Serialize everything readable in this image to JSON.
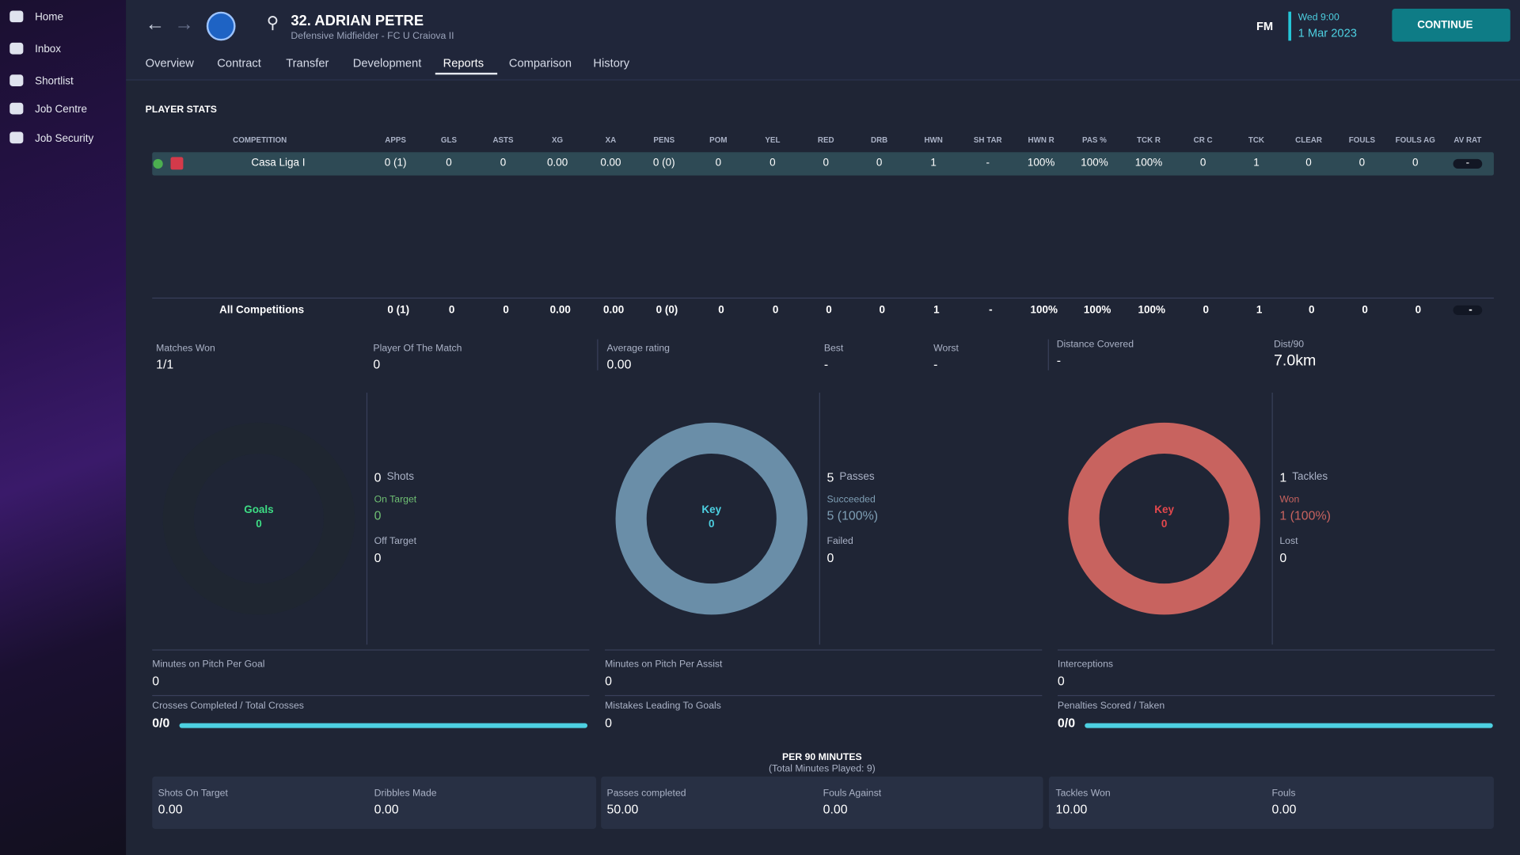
{
  "sidebar": [
    "Home",
    "Inbox",
    "Shortlist",
    "Job Centre",
    "Job Security"
  ],
  "header": {
    "title": "32. ADRIAN PETRE",
    "subtitle": "Defensive Midfielder - FC U Craiova II",
    "brand": "FM",
    "day": "Wed 9:00",
    "date": "1 Mar 2023",
    "continue": "CONTINUE"
  },
  "tabs": [
    "Overview",
    "Contract",
    "Transfer",
    "Development",
    "Reports",
    "Comparison",
    "History"
  ],
  "active_tab": 4,
  "section_title": "PLAYER STATS",
  "table": {
    "columns": [
      "COMPETITION",
      "APPS",
      "GLS",
      "ASTS",
      "XG",
      "XA",
      "PENS",
      "POM",
      "YEL",
      "RED",
      "DRB",
      "HWN",
      "SH TAR",
      "HWN R",
      "PAS %",
      "TCK R",
      "CR C",
      "TCK",
      "CLEAR",
      "FOULS",
      "FOULS AG",
      "AV RAT"
    ],
    "rows": [
      [
        "Casa Liga I",
        "0 (1)",
        "0",
        "0",
        "0.00",
        "0.00",
        "0 (0)",
        "0",
        "0",
        "0",
        "0",
        "1",
        "-",
        "100%",
        "100%",
        "100%",
        "0",
        "1",
        "0",
        "0",
        "0",
        "-"
      ]
    ],
    "totals": [
      "All Competitions",
      "0 (1)",
      "0",
      "0",
      "0.00",
      "0.00",
      "0 (0)",
      "0",
      "0",
      "0",
      "0",
      "1",
      "-",
      "100%",
      "100%",
      "100%",
      "0",
      "1",
      "0",
      "0",
      "0",
      "-"
    ]
  },
  "summary": [
    {
      "label": "Matches Won",
      "value": "1/1"
    },
    {
      "label": "Player Of The Match",
      "value": "0"
    },
    {
      "label": "Average rating",
      "value": "0.00"
    },
    {
      "label": "Best",
      "value": "-"
    },
    {
      "label": "Worst",
      "value": "-"
    },
    {
      "label": "Distance Covered",
      "value": "-"
    },
    {
      "label": "Dist/90",
      "value": "7.0km"
    }
  ],
  "donuts": [
    {
      "center_label": "Goals",
      "center_value": "0",
      "ring_color": "#1f2631",
      "center_color": "#3ddc84",
      "total": "0",
      "total_label": "Shots",
      "sub1_label": "On Target",
      "sub1_value": "0",
      "sub1_color": "#6fbf73",
      "sub2_label": "Off Target",
      "sub2_value": "0"
    },
    {
      "center_label": "Key",
      "center_value": "0",
      "ring_color": "#6a8ea8",
      "center_color": "#4dd0e1",
      "total": "5",
      "total_label": "Passes",
      "sub1_label": "Succeeded",
      "sub1_value": "5 (100%)",
      "sub1_color": "#7f9fb5",
      "sub2_label": "Failed",
      "sub2_value": "0"
    },
    {
      "center_label": "Key",
      "center_value": "0",
      "ring_color": "#c8635f",
      "center_color": "#e5484d",
      "total": "1",
      "total_label": "Tackles",
      "sub1_label": "Won",
      "sub1_value": "1 (100%)",
      "sub1_color": "#c8635f",
      "sub2_label": "Lost",
      "sub2_value": "0"
    }
  ],
  "stats": [
    {
      "label": "Minutes on Pitch Per Goal",
      "value": "0"
    },
    {
      "label": "Minutes on Pitch Per Assist",
      "value": "0"
    },
    {
      "label": "Interceptions",
      "value": "0"
    },
    {
      "label": "Crosses Completed / Total Crosses",
      "value": "0/0"
    },
    {
      "label": "Mistakes Leading To Goals",
      "value": "0"
    },
    {
      "label": "Penalties Scored / Taken",
      "value": "0/0"
    }
  ],
  "bar_color": "#4dd0e1",
  "per90": {
    "title": "PER 90 MINUTES",
    "subtitle": "(Total Minutes Played: 9)",
    "items": [
      {
        "label": "Shots On Target",
        "value": "0.00"
      },
      {
        "label": "Dribbles Made",
        "value": "0.00"
      },
      {
        "label": "Passes completed",
        "value": "50.00"
      },
      {
        "label": "Fouls Against",
        "value": "0.00"
      },
      {
        "label": "Tackles Won",
        "value": "10.00"
      },
      {
        "label": "Fouls",
        "value": "0.00"
      }
    ]
  }
}
